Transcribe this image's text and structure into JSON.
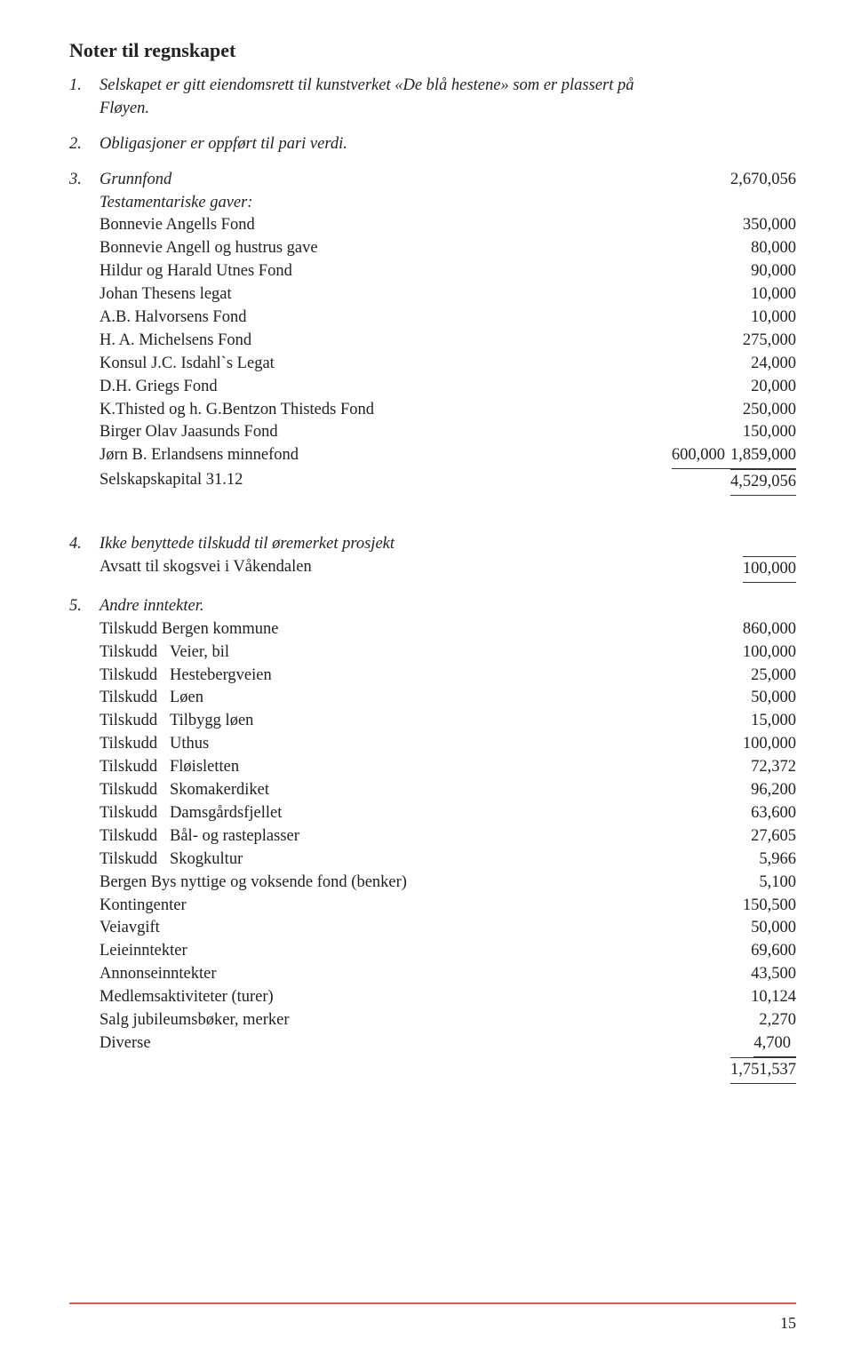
{
  "title": "Noter til regnskapet",
  "note1": {
    "num": "1.",
    "text1": "Selskapet er gitt eiendomsrett til kunstverket «De blå hestene» som er plassert på",
    "text2": "Fløyen."
  },
  "note2": {
    "num": "2.",
    "text": "Obligasjoner er oppført til pari verdi."
  },
  "note3": {
    "num": "3.",
    "grunnfond_label": "Grunnfond",
    "grunnfond_value": "2,670,056",
    "testamentariske": "Testamentariske gaver:",
    "rows": [
      {
        "label": "Bonnevie Angells Fond",
        "v1": "350,000"
      },
      {
        "label": "Bonnevie Angell og hustrus gave",
        "v1": "80,000"
      },
      {
        "label": "Hildur og Harald Utnes Fond",
        "v1": "90,000"
      },
      {
        "label": "Johan Thesens legat",
        "v1": "10,000"
      },
      {
        "label": "A.B. Halvorsens Fond",
        "v1": "10,000"
      },
      {
        "label": "H. A. Michelsens Fond",
        "v1": "275,000"
      },
      {
        "label": "Konsul J.C. Isdahl`s Legat",
        "v1": "24,000"
      },
      {
        "label": "D.H. Griegs Fond",
        "v1": "20,000"
      },
      {
        "label": "K.Thisted og h. G.Bentzon Thisteds Fond",
        "v1": "250,000"
      },
      {
        "label": "Birger Olav Jaasunds Fond",
        "v1": "150,000"
      }
    ],
    "jornb_label": "Jørn B. Erlandsens minnefond",
    "jornb_v1": "600,000",
    "jornb_v2": "1,859,000",
    "selskap_label": "Selskapskapital 31.12",
    "selskap_value": "4,529,056"
  },
  "note4": {
    "num": "4.",
    "title": "Ikke benyttede tilskudd til øremerket prosjekt",
    "row_label": "Avsatt til skogsvei i Våkendalen",
    "row_value": "100,000"
  },
  "note5": {
    "num": "5.",
    "title": "Andre inntekter.",
    "rows": [
      {
        "label": "Tilskudd Bergen kommune",
        "v": "860,000"
      },
      {
        "label": "Tilskudd   Veier, bil",
        "v": "100,000"
      },
      {
        "label": "Tilskudd   Hestebergveien",
        "v": "25,000"
      },
      {
        "label": "Tilskudd   Løen",
        "v": "50,000"
      },
      {
        "label": "Tilskudd   Tilbygg løen",
        "v": "15,000"
      },
      {
        "label": "Tilskudd   Uthus",
        "v": "100,000"
      },
      {
        "label": "Tilskudd   Fløisletten",
        "v": "72,372"
      },
      {
        "label": "Tilskudd   Skomakerdiket",
        "v": "96,200"
      },
      {
        "label": "Tilskudd   Damsgårdsfjellet",
        "v": "63,600"
      },
      {
        "label": "Tilskudd   Bål- og rasteplasser",
        "v": "27,605"
      },
      {
        "label": "Tilskudd   Skogkultur",
        "v": "5,966"
      },
      {
        "label": "Bergen Bys nyttige og voksende fond (benker)",
        "v": "5,100"
      },
      {
        "label": "Kontingenter",
        "v": "150,500"
      },
      {
        "label": "Veiavgift",
        "v": "50,000"
      },
      {
        "label": "Leieinntekter",
        "v": "69,600"
      },
      {
        "label": "Annonseinntekter",
        "v": "43,500"
      },
      {
        "label": "Medlemsaktiviteter (turer)",
        "v": "10,124"
      },
      {
        "label": "Salg jubileumsbøker, merker",
        "v": "2,270"
      }
    ],
    "diverse_label": "Diverse",
    "diverse_value": "4,700",
    "total": "1,751,537"
  },
  "page_number": "15"
}
